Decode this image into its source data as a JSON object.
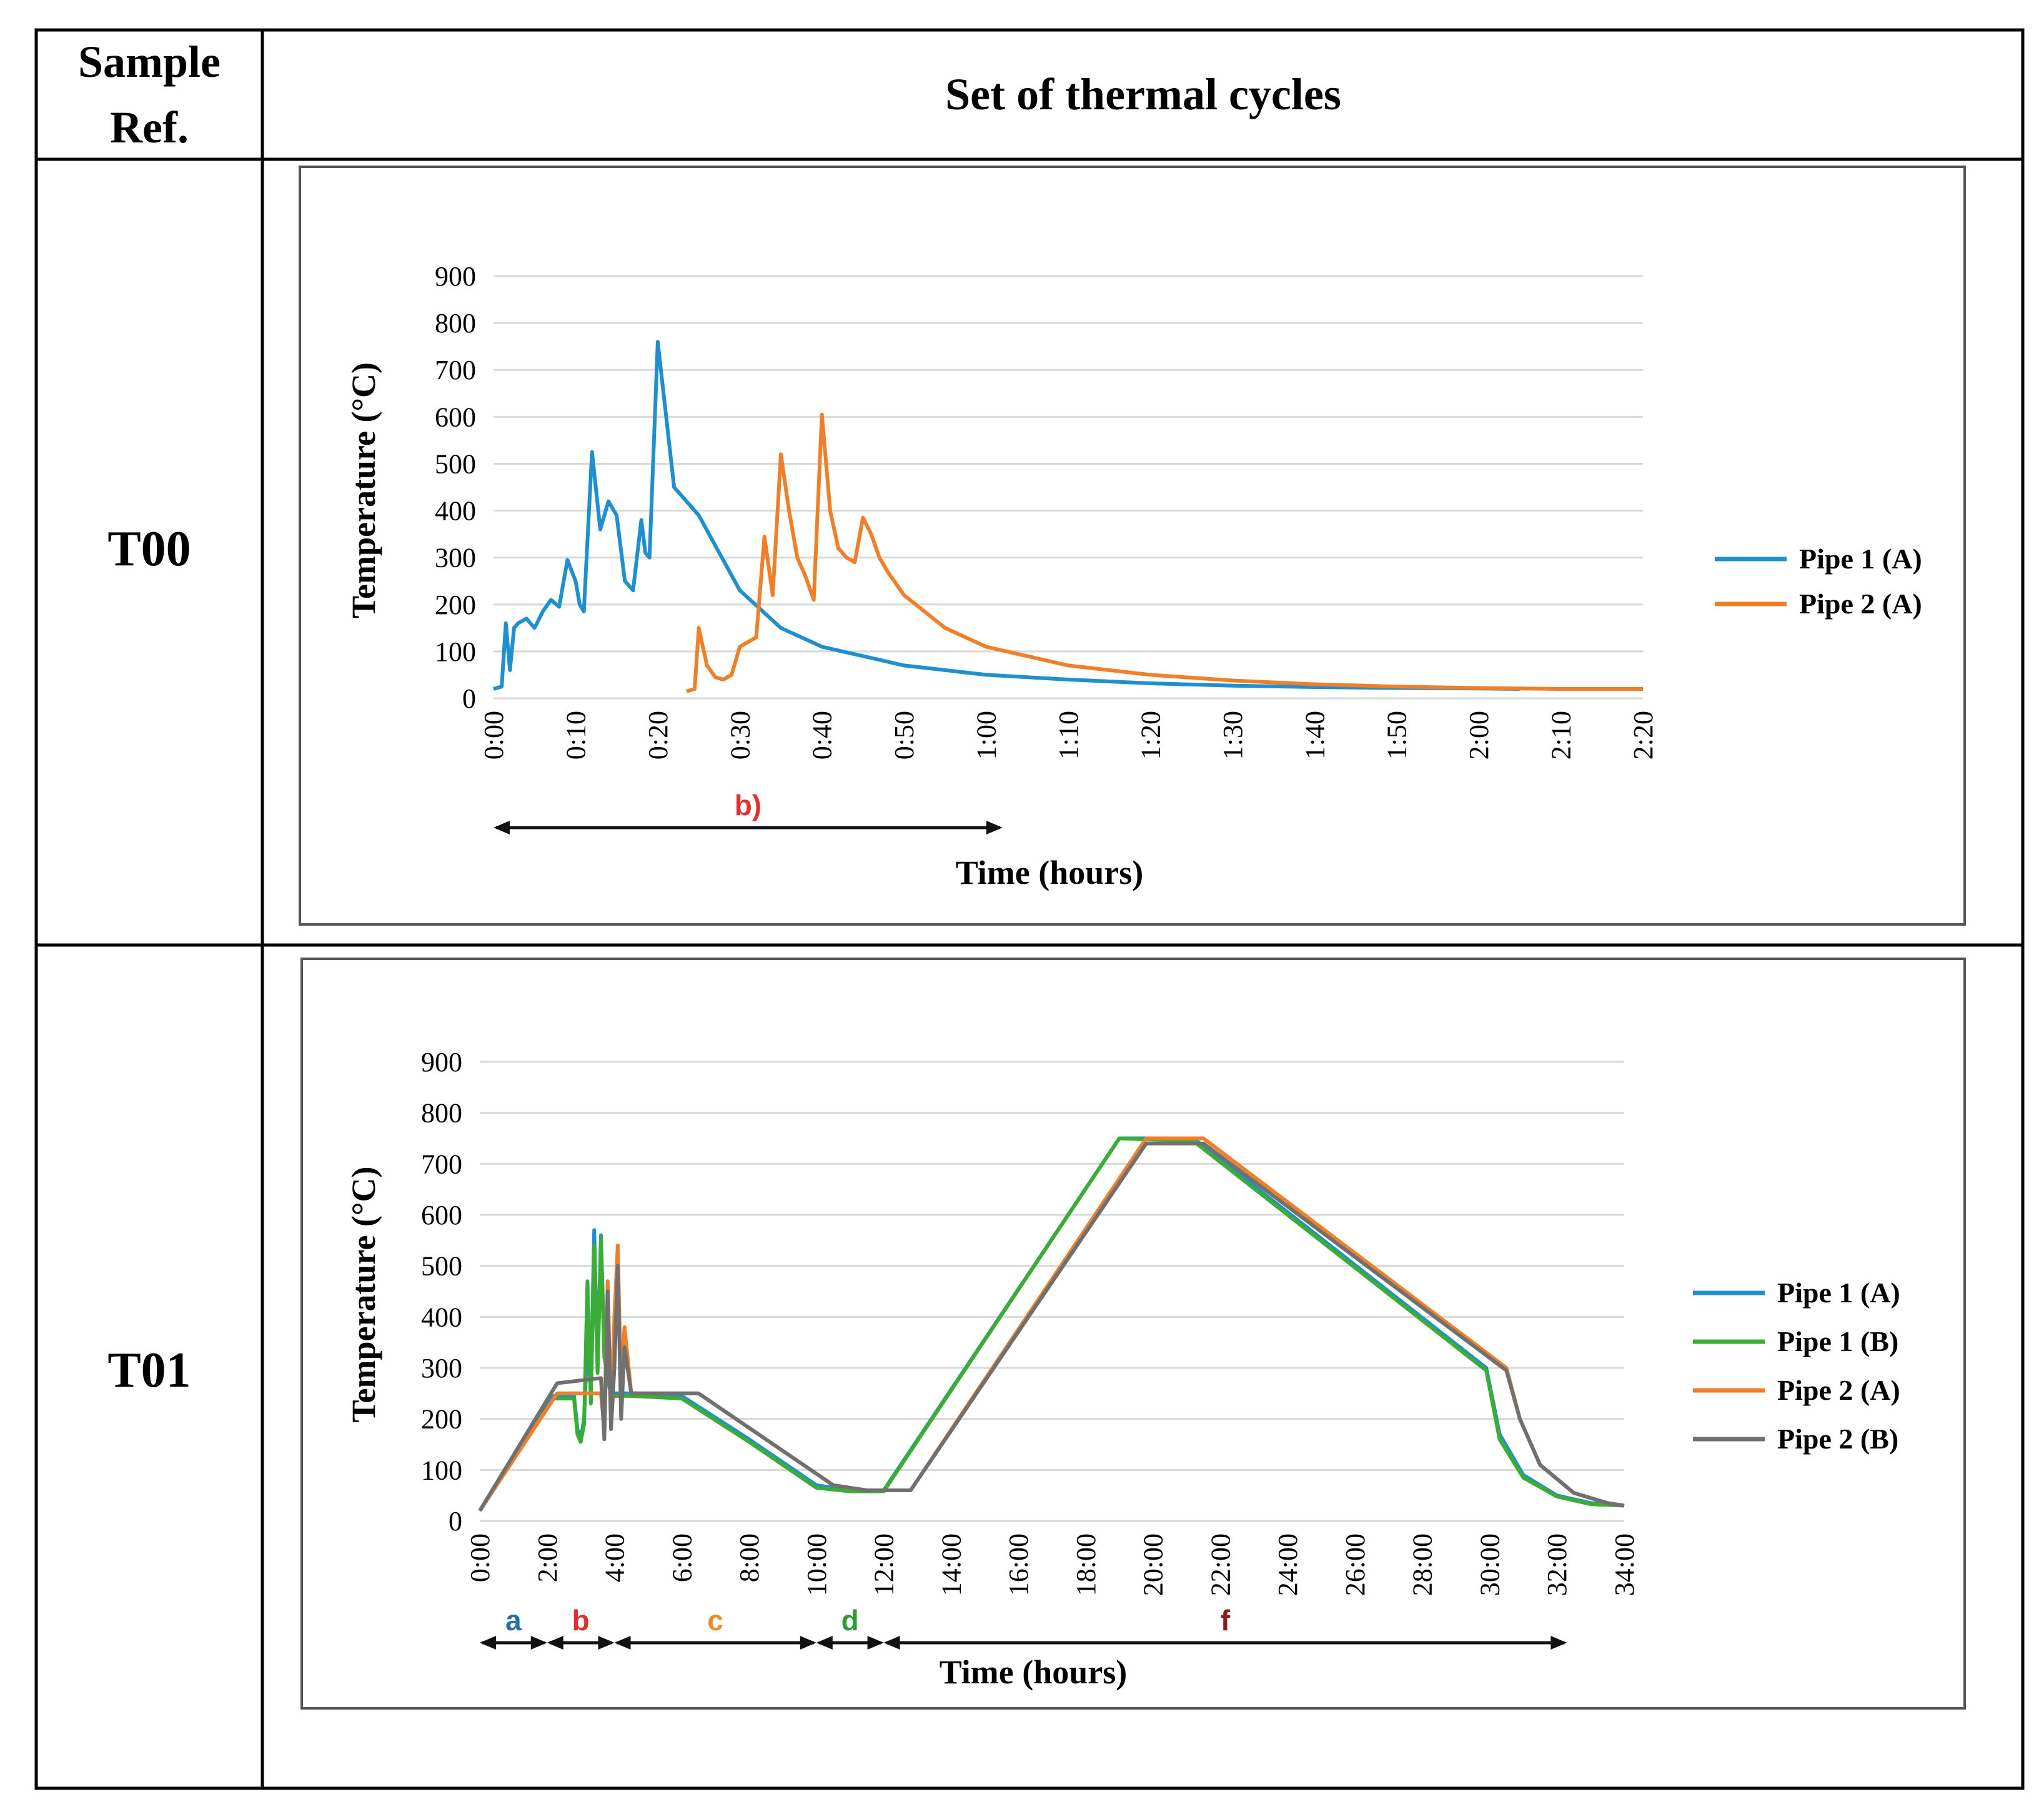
{
  "table": {
    "header_sample": [
      "Sample",
      "Ref."
    ],
    "header_cycles": "Set of thermal cycles",
    "rows": [
      {
        "sample_ref": "T00"
      },
      {
        "sample_ref": "T01"
      }
    ]
  },
  "colors": {
    "pipe1A": "#1f8fd0",
    "pipe2A": "#f07f2a",
    "pipe1B": "#3aad35",
    "pipe2B": "#707070",
    "grid": "#d9d9d9",
    "phase_a": "#2a6ea8",
    "phase_b": "#e03030",
    "phase_c": "#f08a30",
    "phase_d": "#2e9a3a",
    "phase_f": "#8b1a1a"
  },
  "chart_data": [
    {
      "type": "line",
      "sample": "T00",
      "title": "",
      "xlabel": "Time (hours)",
      "ylabel": "Temperature (°C)",
      "ylim": [
        0,
        900
      ],
      "yticks": [
        "0",
        "100",
        "200",
        "300",
        "400",
        "500",
        "600",
        "700",
        "800",
        "900"
      ],
      "xlim_minutes": [
        0,
        140
      ],
      "xticks": [
        "0:00",
        "0:10",
        "0:20",
        "0:30",
        "0:40",
        "0:50",
        "1:00",
        "1:10",
        "1:20",
        "1:30",
        "1:40",
        "1:50",
        "2:00",
        "2:10",
        "2:20"
      ],
      "grid": true,
      "legend_position": "right",
      "series": [
        {
          "name": "Pipe 1 (A)",
          "color_key": "pipe1A",
          "x_minutes": [
            0,
            1,
            1.5,
            2,
            2.5,
            3,
            4,
            5,
            6,
            7,
            8,
            9,
            10,
            10.5,
            11,
            12,
            13,
            14,
            15,
            16,
            17,
            18,
            18.5,
            19,
            20,
            22,
            25,
            30,
            35,
            40,
            50,
            60,
            70,
            80,
            90,
            100,
            110,
            120,
            125
          ],
          "y": [
            20,
            25,
            160,
            60,
            150,
            160,
            170,
            150,
            185,
            210,
            195,
            295,
            250,
            200,
            185,
            525,
            360,
            420,
            390,
            250,
            230,
            380,
            310,
            300,
            760,
            450,
            390,
            230,
            150,
            110,
            70,
            50,
            40,
            32,
            27,
            24,
            22,
            21,
            20
          ]
        },
        {
          "name": "Pipe 2 (A)",
          "color_key": "pipe2A",
          "x_minutes": [
            23.5,
            24.5,
            25,
            26,
            27,
            28,
            29,
            30,
            31,
            32,
            33,
            34,
            35,
            36,
            37,
            38,
            39,
            40,
            41,
            42,
            43,
            44,
            45,
            46,
            47,
            48,
            50,
            55,
            60,
            70,
            80,
            90,
            100,
            110,
            120,
            130,
            140
          ],
          "y": [
            15,
            20,
            150,
            70,
            45,
            40,
            50,
            110,
            120,
            130,
            345,
            220,
            520,
            400,
            300,
            260,
            210,
            605,
            400,
            320,
            300,
            290,
            385,
            350,
            300,
            270,
            220,
            150,
            110,
            70,
            50,
            38,
            30,
            25,
            22,
            20,
            20
          ]
        }
      ],
      "annotations": [
        {
          "label": "b)",
          "from_minutes": 0,
          "to_minutes": 62,
          "color_key": "phase_b"
        }
      ]
    },
    {
      "type": "line",
      "sample": "T01",
      "title": "",
      "xlabel": "Time (hours)",
      "ylabel": "Temperature (°C)",
      "ylim": [
        0,
        900
      ],
      "yticks": [
        "0",
        "100",
        "200",
        "300",
        "400",
        "500",
        "600",
        "700",
        "800",
        "900"
      ],
      "xlim_hours": [
        0,
        34
      ],
      "xticks": [
        "0:00",
        "2:00",
        "4:00",
        "6:00",
        "8:00",
        "10:00",
        "12:00",
        "14:00",
        "16:00",
        "18:00",
        "20:00",
        "22:00",
        "24:00",
        "26:00",
        "28:00",
        "30:00",
        "32:00",
        "34:00"
      ],
      "grid": true,
      "legend_position": "right",
      "series": [
        {
          "name": "Pipe 1 (A)",
          "color_key": "pipe1A",
          "x_hours": [
            0,
            2.2,
            2.8,
            2.9,
            3.0,
            3.1,
            3.2,
            3.3,
            3.4,
            3.5,
            3.6,
            3.7,
            3.9,
            4.5,
            6.0,
            8.0,
            10.0,
            11.0,
            12.0,
            19.0,
            21.2,
            29.9,
            30.3,
            31.0,
            32.0,
            33.0,
            34.0
          ],
          "y": [
            20,
            245,
            245,
            180,
            160,
            200,
            360,
            250,
            570,
            300,
            560,
            330,
            250,
            250,
            245,
            160,
            70,
            60,
            60,
            750,
            750,
            300,
            170,
            90,
            50,
            35,
            30
          ]
        },
        {
          "name": "Pipe 1 (B)",
          "color_key": "pipe1B",
          "x_hours": [
            0,
            2.2,
            2.8,
            2.9,
            3.0,
            3.1,
            3.2,
            3.3,
            3.4,
            3.5,
            3.6,
            3.7,
            3.9,
            4.5,
            6.0,
            8.0,
            10.0,
            11.0,
            12.0,
            19.0,
            21.2,
            29.9,
            30.3,
            31.0,
            32.0,
            33.0,
            34.0
          ],
          "y": [
            20,
            240,
            240,
            170,
            155,
            190,
            470,
            230,
            540,
            290,
            555,
            320,
            245,
            245,
            240,
            155,
            65,
            58,
            58,
            750,
            745,
            295,
            160,
            85,
            48,
            33,
            30
          ]
        },
        {
          "name": "Pipe 2 (A)",
          "color_key": "pipe2A",
          "x_hours": [
            0,
            2.3,
            3.6,
            3.7,
            3.8,
            3.9,
            4.0,
            4.1,
            4.2,
            4.3,
            4.5,
            6.5,
            8.5,
            10.5,
            11.5,
            12.8,
            19.8,
            21.5,
            30.5,
            30.9,
            31.5,
            32.5,
            33.5,
            34.0
          ],
          "y": [
            20,
            250,
            250,
            180,
            470,
            200,
            400,
            540,
            250,
            380,
            250,
            250,
            160,
            70,
            60,
            60,
            750,
            750,
            300,
            200,
            110,
            55,
            35,
            30
          ]
        },
        {
          "name": "Pipe 2 (B)",
          "color_key": "pipe2B",
          "x_hours": [
            0,
            2.3,
            3.6,
            3.7,
            3.8,
            3.9,
            4.0,
            4.1,
            4.2,
            4.3,
            4.5,
            6.5,
            8.5,
            10.5,
            11.5,
            12.8,
            19.8,
            21.5,
            30.5,
            30.9,
            31.5,
            32.5,
            33.5,
            34.0
          ],
          "y": [
            20,
            270,
            280,
            160,
            450,
            180,
            300,
            500,
            200,
            340,
            250,
            250,
            160,
            70,
            60,
            60,
            740,
            740,
            295,
            200,
            110,
            55,
            35,
            30
          ]
        }
      ],
      "annotations": [
        {
          "label": "a",
          "from_hours": 0,
          "to_hours": 2.0,
          "color_key": "phase_a"
        },
        {
          "label": "b",
          "from_hours": 2.0,
          "to_hours": 4.0,
          "color_key": "phase_b"
        },
        {
          "label": "c",
          "from_hours": 4.0,
          "to_hours": 10.0,
          "color_key": "phase_c"
        },
        {
          "label": "d",
          "from_hours": 10.0,
          "to_hours": 12.0,
          "color_key": "phase_d"
        },
        {
          "label": "f",
          "from_hours": 12.0,
          "to_hours": 32.3,
          "color_key": "phase_f"
        }
      ]
    }
  ]
}
